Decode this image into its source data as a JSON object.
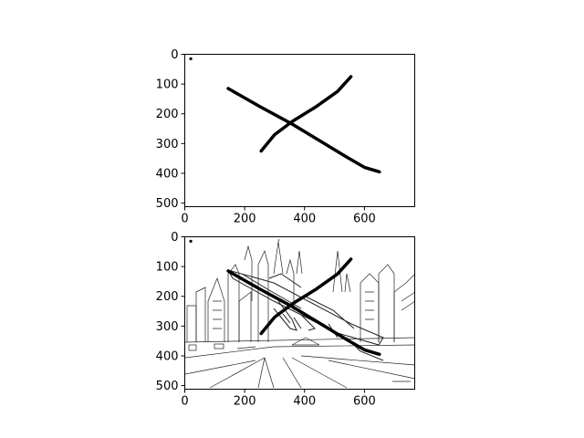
{
  "chart_data": [
    {
      "type": "image",
      "panel": "top",
      "xlim": [
        0,
        768
      ],
      "ylim": [
        512,
        0
      ],
      "xticks": [
        0,
        200,
        400,
        600
      ],
      "yticks": [
        0,
        100,
        200,
        300,
        400,
        500
      ],
      "grid": false,
      "content": "hand-drawn X stroke on white background",
      "strokes": [
        {
          "name": "",
          "points": [
            [
              145,
              115
            ],
            [
              250,
              175
            ],
            [
              360,
              235
            ],
            [
              450,
              290
            ],
            [
              540,
              345
            ],
            [
              600,
              380
            ],
            [
              650,
              395
            ]
          ]
        },
        {
          "name": "",
          "points": [
            [
              255,
              325
            ],
            [
              300,
              270
            ],
            [
              360,
              225
            ],
            [
              440,
              175
            ],
            [
              510,
              125
            ],
            [
              555,
              75
            ]
          ]
        }
      ],
      "dot": [
        20,
        15
      ]
    },
    {
      "type": "image",
      "panel": "bottom",
      "xlim": [
        0,
        768
      ],
      "ylim": [
        512,
        0
      ],
      "xticks": [
        0,
        200,
        400,
        600
      ],
      "yticks": [
        0,
        100,
        200,
        300,
        400,
        500
      ],
      "grid": false,
      "content": "same X stroke overlaid on a line-art sketch of a jet over a city",
      "strokes": [
        {
          "name": "",
          "points": [
            [
              145,
              115
            ],
            [
              250,
              175
            ],
            [
              360,
              235
            ],
            [
              450,
              290
            ],
            [
              540,
              345
            ],
            [
              600,
              380
            ],
            [
              650,
              395
            ]
          ]
        },
        {
          "name": "",
          "points": [
            [
              255,
              325
            ],
            [
              300,
              270
            ],
            [
              360,
              225
            ],
            [
              440,
              175
            ],
            [
              510,
              125
            ],
            [
              555,
              75
            ]
          ]
        }
      ],
      "dot": [
        20,
        15
      ]
    }
  ]
}
